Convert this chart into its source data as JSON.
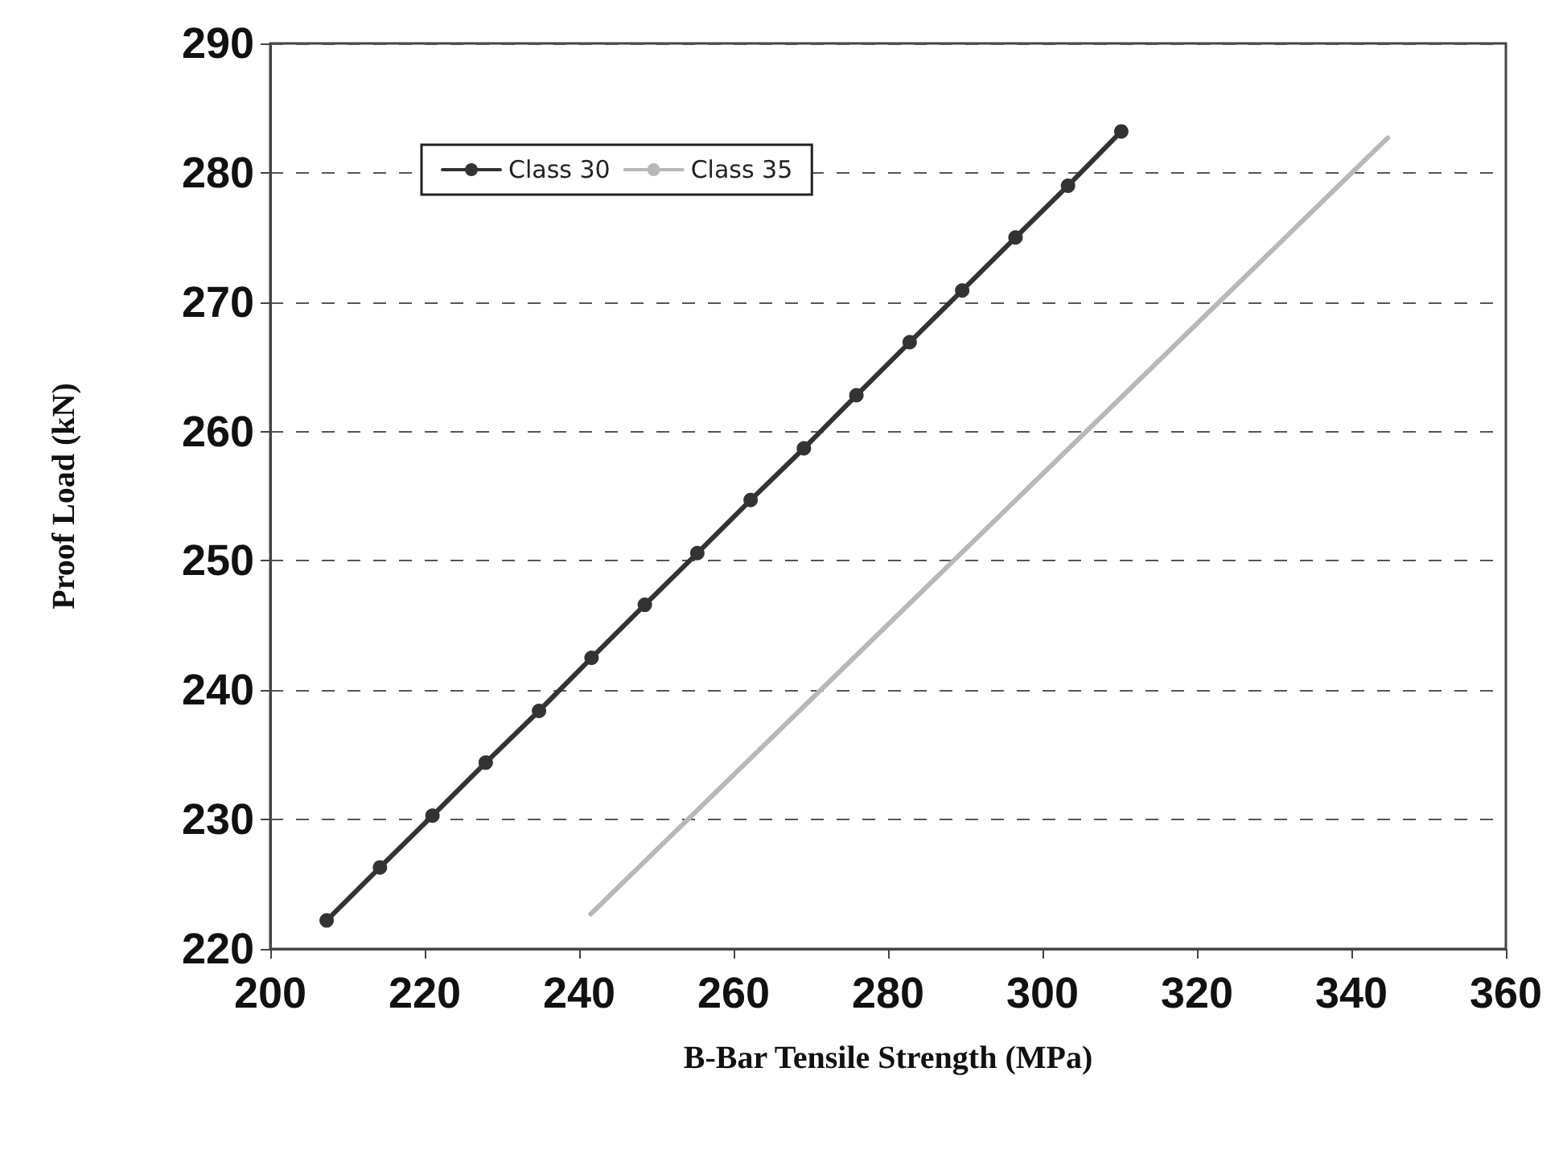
{
  "chart_data": {
    "type": "line",
    "xlabel": "B-Bar Tensile Strength (MPa)",
    "ylabel": "Proof Load (kN)",
    "xlim": [
      200,
      360
    ],
    "xticks": [
      200,
      220,
      240,
      260,
      280,
      300,
      320,
      340,
      360
    ],
    "ylim": [
      220,
      290
    ],
    "yticks": [
      220,
      230,
      240,
      250,
      260,
      270,
      280,
      290
    ],
    "grid": "y",
    "legend": "top left",
    "marker": "circle",
    "line_style": "solid",
    "series": [
      {
        "name": "Class 30",
        "color": "#333333",
        "x": [
          207.3,
          214.2,
          221,
          227.9,
          234.8,
          241.6,
          248.5,
          255.3,
          262.2,
          269.1,
          275.9,
          282.8,
          289.6,
          296.5,
          303.3,
          310.2
        ],
        "values": [
          222.2,
          226.3,
          230.3,
          234.4,
          238.4,
          242.5,
          246.6,
          250.6,
          254.7,
          258.7,
          262.8,
          266.9,
          270.9,
          275,
          279,
          283.2
        ]
      },
      {
        "name": "Class 35",
        "color": "#b8b8b8",
        "marker": "none",
        "x": [
          241.5,
          344.7
        ],
        "values": [
          222.7,
          282.7
        ]
      }
    ]
  }
}
